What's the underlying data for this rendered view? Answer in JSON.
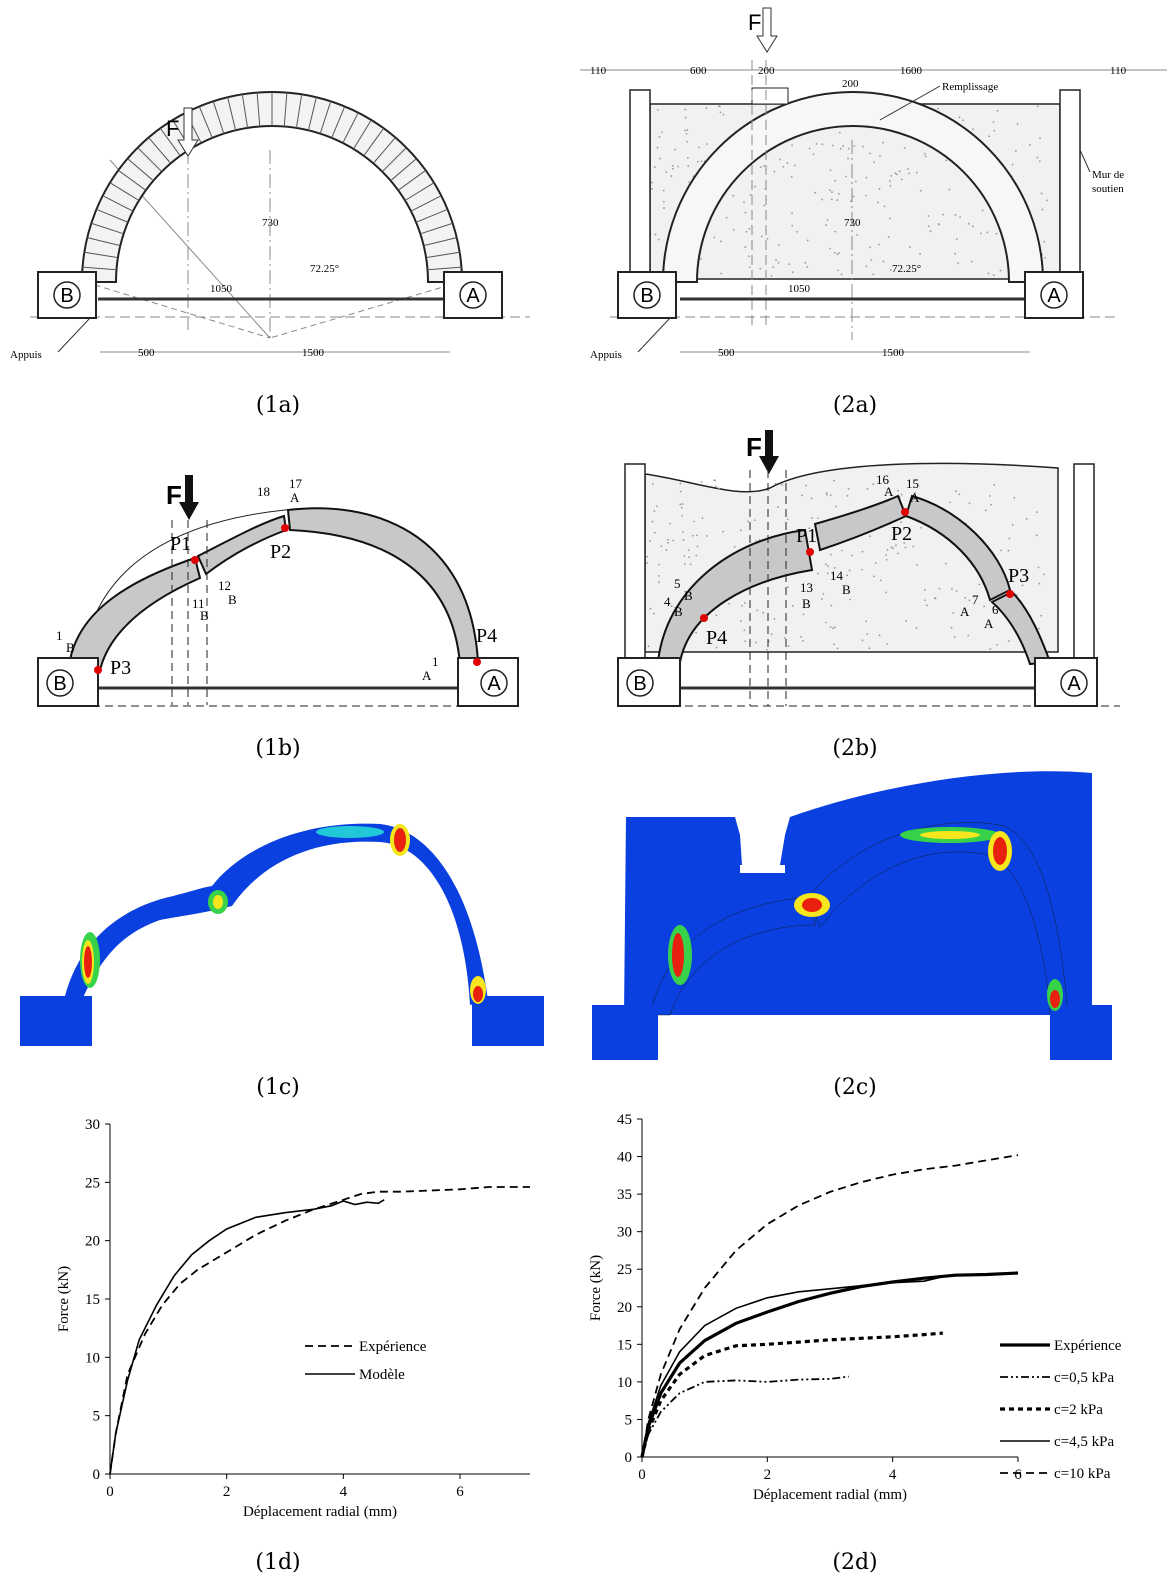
{
  "captions": {
    "p1a": "(1a)",
    "p2a": "(2a)",
    "p1b": "(1b)",
    "p2b": "(2b)",
    "p1c": "(1c)",
    "p2c": "(2c)",
    "p1d": "(1d)",
    "p2d": "(2d)"
  },
  "drawing_1a": {
    "force": "F",
    "rise": "730",
    "span": "1050",
    "angle": "72.25°",
    "dim_left": "500",
    "dim_right": "1500",
    "support_label": "Appuis",
    "abutment_left": "B",
    "abutment_right": "A"
  },
  "drawing_2a": {
    "force": "F",
    "dims_top": [
      "110",
      "600",
      "200",
      "1600",
      "110"
    ],
    "fill_depth": "200",
    "fill_label": "Remplissage",
    "wall_label_1": "Mur de",
    "wall_label_2": "soutien",
    "rise": "730",
    "span": "1050",
    "angle": "72.25°",
    "dim_left": "500",
    "dim_right": "1500",
    "support_label": "Appuis",
    "abutment_left": "B",
    "abutment_right": "A"
  },
  "drawing_1b": {
    "force": "F",
    "hinges": [
      "P1",
      "P2",
      "P3",
      "P4"
    ],
    "joints": [
      "18",
      "17",
      "A",
      "12",
      "B",
      "11",
      "B",
      "1",
      "B",
      "1",
      "A"
    ],
    "abutment_left": "B",
    "abutment_right": "A"
  },
  "drawing_2b": {
    "force": "F",
    "hinges": [
      "P1",
      "P2",
      "P3",
      "P4"
    ],
    "joints": [
      "16",
      "A",
      "15",
      "A",
      "14",
      "B",
      "13",
      "B",
      "4",
      "B",
      "5",
      "B",
      "7",
      "A",
      "6",
      "A"
    ],
    "abutment_left": "B",
    "abutment_right": "A"
  },
  "colors": {
    "fem_blue": "#0a3fe0",
    "fem_cyan": "#22c8d8",
    "fem_green": "#37d24a",
    "fem_yellow": "#f5e61e",
    "fem_red": "#e8210f",
    "voussoir_gray": "#c8c8c8",
    "hinge_red": "#e00000"
  },
  "chart_data": [
    {
      "type": "line",
      "panel": "(1d)",
      "xlabel": "Déplacement radial (mm)",
      "ylabel": "Force (kN)",
      "xlim": [
        0,
        7.2
      ],
      "ylim": [
        0,
        30
      ],
      "xticks": [
        0,
        2,
        4,
        6
      ],
      "yticks": [
        0,
        5,
        10,
        15,
        20,
        25,
        30
      ],
      "legend": "center-right",
      "series": [
        {
          "name": "Expérience",
          "style": "dashed",
          "x": [
            0,
            0.1,
            0.3,
            0.6,
            0.9,
            1.2,
            1.5,
            2.0,
            2.5,
            3.0,
            3.5,
            4.0,
            4.3,
            4.6,
            5.0,
            5.5,
            6.0,
            6.5,
            7.0,
            7.2
          ],
          "y": [
            0,
            3.5,
            8.5,
            12.0,
            14.5,
            16.3,
            17.5,
            19.0,
            20.5,
            21.7,
            22.7,
            23.5,
            24.0,
            24.2,
            24.2,
            24.3,
            24.4,
            24.6,
            24.6,
            24.6
          ]
        },
        {
          "name": "Modèle",
          "style": "solid",
          "x": [
            0,
            0.1,
            0.3,
            0.5,
            0.8,
            1.1,
            1.4,
            1.7,
            2.0,
            2.5,
            3.0,
            3.5,
            3.8,
            4.0,
            4.2,
            4.4,
            4.6,
            4.7
          ],
          "y": [
            0,
            3.5,
            8.0,
            11.5,
            14.5,
            17.0,
            18.8,
            20.0,
            21.0,
            22.0,
            22.4,
            22.7,
            23.0,
            23.4,
            23.1,
            23.3,
            23.2,
            23.5
          ]
        }
      ]
    },
    {
      "type": "line",
      "panel": "(2d)",
      "xlabel": "Déplacement radial (mm)",
      "ylabel": "Force (kN)",
      "xlim": [
        0,
        6
      ],
      "ylim": [
        0,
        45
      ],
      "xticks": [
        0,
        2,
        4,
        6
      ],
      "yticks": [
        0,
        5,
        10,
        15,
        20,
        25,
        30,
        35,
        40,
        45
      ],
      "legend": "right",
      "series": [
        {
          "name": "Expérience",
          "style": "thick",
          "x": [
            0,
            0.1,
            0.3,
            0.6,
            1.0,
            1.5,
            2.0,
            2.5,
            3.0,
            3.5,
            4.0,
            4.5,
            5.0,
            5.5,
            6.0
          ],
          "y": [
            0,
            4.0,
            8.5,
            12.5,
            15.5,
            17.8,
            19.3,
            20.7,
            21.8,
            22.7,
            23.3,
            23.8,
            24.2,
            24.3,
            24.5
          ]
        },
        {
          "name": "c=0,5 kPa",
          "style": "dashdot",
          "x": [
            0,
            0.1,
            0.3,
            0.6,
            1.0,
            1.5,
            2.0,
            2.5,
            3.0,
            3.3
          ],
          "y": [
            0,
            3.0,
            6.0,
            8.5,
            10.0,
            10.2,
            10.0,
            10.3,
            10.4,
            10.7
          ]
        },
        {
          "name": "c=2 kPa",
          "style": "dotted",
          "x": [
            0,
            0.1,
            0.3,
            0.6,
            1.0,
            1.5,
            2.0,
            2.5,
            3.0,
            3.5,
            4.0,
            4.5,
            4.8
          ],
          "y": [
            0,
            3.5,
            7.5,
            11.0,
            13.5,
            14.8,
            15.0,
            15.3,
            15.6,
            15.8,
            16.0,
            16.3,
            16.5
          ]
        },
        {
          "name": "c=4,5 kPa",
          "style": "solid",
          "x": [
            0,
            0.1,
            0.3,
            0.6,
            1.0,
            1.5,
            2.0,
            2.5,
            3.0,
            3.5,
            4.0,
            4.5,
            4.8
          ],
          "y": [
            0,
            4.5,
            9.5,
            14.0,
            17.5,
            19.8,
            21.2,
            22.0,
            22.4,
            22.8,
            23.2,
            23.4,
            24.0
          ]
        },
        {
          "name": "c=10 kPa",
          "style": "dashed",
          "x": [
            0,
            0.1,
            0.3,
            0.6,
            1.0,
            1.5,
            2.0,
            2.5,
            3.0,
            3.5,
            4.0,
            4.5,
            5.0,
            5.5,
            6.0
          ],
          "y": [
            0,
            5.0,
            11.0,
            17.0,
            22.5,
            27.5,
            31.0,
            33.5,
            35.3,
            36.6,
            37.6,
            38.3,
            38.8,
            39.5,
            40.2
          ]
        }
      ]
    }
  ]
}
